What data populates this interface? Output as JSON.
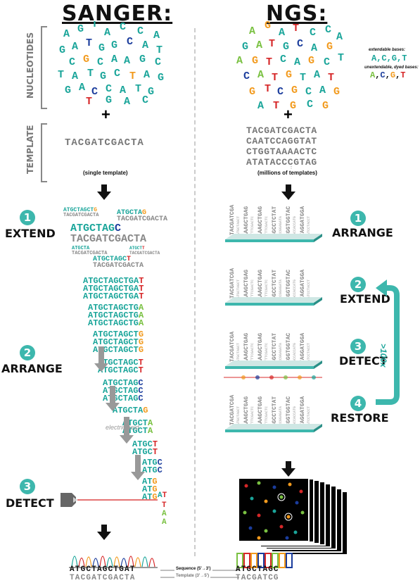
{
  "titles": {
    "left": "SANGER:",
    "right": "NGS:"
  },
  "side_labels": {
    "nucleotides": "NUCLEOTIDES",
    "template": "TEMPLATE"
  },
  "left": {
    "template_seq": "TACGATCGACTA",
    "template_caption": "(single template)",
    "steps": [
      {
        "num": "1",
        "label": "EXTEND"
      },
      {
        "num": "2",
        "label": "ARRANGE"
      },
      {
        "num": "3",
        "label": "DETECT"
      }
    ],
    "electric_field": "electric field",
    "sequence_top": "ATGCTAGCTGAT",
    "sequence_bottom": "TACGATCGACTA"
  },
  "right": {
    "templates": [
      "TACGATCGACTA",
      "CAATCCAGGTAT",
      "CTGGTAAAACTC",
      "ATATACCCGTAG"
    ],
    "template_caption": "(millions of templates)",
    "legend_extendable": "extendable bases:",
    "legend_extendable_bases": "A,C,G,T",
    "legend_unextendable": "unextendable, dyed bases:",
    "steps": [
      {
        "num": "1",
        "label": "ARRANGE"
      },
      {
        "num": "2",
        "label": "EXTEND"
      },
      {
        "num": "3",
        "label": "DETECT"
      },
      {
        "num": "4",
        "label": "RESTORE"
      }
    ],
    "loop_label": ">100x",
    "sequence_top": "ATGCTAGC",
    "sequence_bottom": "TACGATCG"
  },
  "center": {
    "sequence_label": "Sequence (5'→3')",
    "template_label": "Template (3'→5')"
  },
  "plus": "+"
}
